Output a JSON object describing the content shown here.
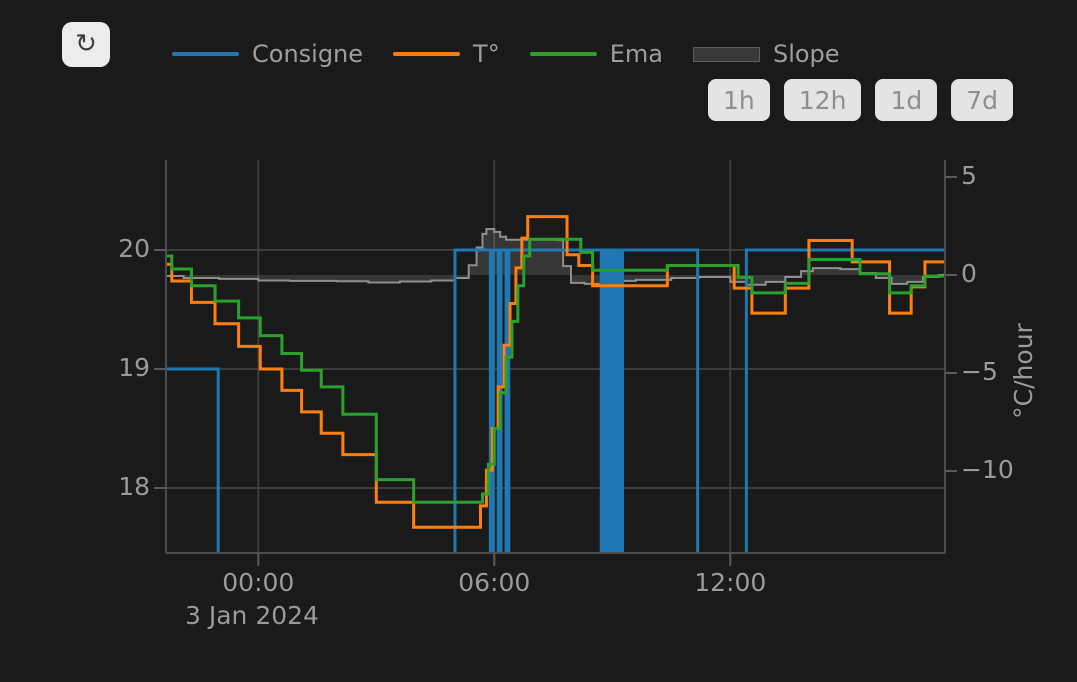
{
  "toolbar": {
    "refresh_icon": "↻"
  },
  "legend": {
    "items": [
      {
        "label": "Consigne",
        "color": "#1f77b4",
        "marker": "line"
      },
      {
        "label": "T°",
        "color": "#ff7f0e",
        "marker": "line"
      },
      {
        "label": "Ema",
        "color": "#2ca02c",
        "marker": "line"
      },
      {
        "label": "Slope",
        "color": "#383838",
        "marker": "box"
      }
    ]
  },
  "range_buttons": [
    {
      "label": "1h"
    },
    {
      "label": "12h"
    },
    {
      "label": "1d"
    },
    {
      "label": "7d"
    }
  ],
  "chart_data": {
    "type": "line",
    "x_axis": {
      "date_label": "3 Jan 2024",
      "tick_hours": [
        0,
        6,
        12
      ],
      "tick_labels": [
        "00:00",
        "06:00",
        "12:00"
      ],
      "range_hours": [
        -2.35,
        17.47
      ]
    },
    "left_axis": {
      "ticks": [
        20,
        19,
        18
      ],
      "tick_labels": [
        "20",
        "19",
        "18"
      ]
    },
    "right_axis": {
      "label": "°C/hour",
      "ticks": [
        5,
        0,
        -5,
        -10
      ],
      "tick_labels": [
        "5",
        "0",
        "−5",
        "−10"
      ]
    },
    "grid": true,
    "series": [
      {
        "name": "Consigne",
        "color": "#1f77b4",
        "axis": "left",
        "line_shape": "step",
        "null_means": "setpoint below visible range (line drawn to chart floor)",
        "points": [
          [
            -2.35,
            19
          ],
          [
            -1.02,
            null
          ],
          [
            5.0,
            20
          ],
          [
            5.9,
            null
          ],
          [
            5.97,
            20
          ],
          [
            6.1,
            null
          ],
          [
            6.17,
            20
          ],
          [
            6.3,
            null
          ],
          [
            6.37,
            20
          ],
          [
            8.72,
            null
          ],
          [
            8.78,
            20
          ],
          [
            8.84,
            null
          ],
          [
            8.9,
            20
          ],
          [
            8.96,
            null
          ],
          [
            9.02,
            20
          ],
          [
            9.08,
            null
          ],
          [
            9.14,
            20
          ],
          [
            9.2,
            null
          ],
          [
            9.26,
            20
          ],
          [
            11.17,
            null
          ],
          [
            12.41,
            20
          ]
        ]
      },
      {
        "name": "T°",
        "color": "#ff7f0e",
        "axis": "left",
        "line_shape": "step",
        "points": [
          [
            -2.35,
            19.88
          ],
          [
            -2.2,
            19.74
          ],
          [
            -1.7,
            19.56
          ],
          [
            -1.1,
            19.38
          ],
          [
            -0.5,
            19.19
          ],
          [
            0.05,
            19.0
          ],
          [
            0.6,
            18.82
          ],
          [
            1.1,
            18.64
          ],
          [
            1.6,
            18.46
          ],
          [
            2.15,
            18.28
          ],
          [
            3.0,
            17.88
          ],
          [
            3.95,
            17.67
          ],
          [
            5.65,
            17.85
          ],
          [
            5.8,
            18.15
          ],
          [
            5.95,
            18.5
          ],
          [
            6.1,
            18.85
          ],
          [
            6.25,
            19.2
          ],
          [
            6.4,
            19.55
          ],
          [
            6.55,
            19.85
          ],
          [
            6.7,
            20.1
          ],
          [
            6.85,
            20.28
          ],
          [
            7.85,
            19.96
          ],
          [
            8.15,
            19.87
          ],
          [
            8.5,
            19.7
          ],
          [
            10.4,
            19.87
          ],
          [
            12.1,
            19.68
          ],
          [
            12.55,
            19.47
          ],
          [
            13.4,
            19.68
          ],
          [
            14.0,
            20.08
          ],
          [
            15.1,
            19.9
          ],
          [
            16.05,
            19.47
          ],
          [
            16.6,
            19.69
          ],
          [
            16.95,
            19.9
          ]
        ]
      },
      {
        "name": "Ema",
        "color": "#2ca02c",
        "axis": "left",
        "line_shape": "step",
        "points": [
          [
            -2.35,
            19.95
          ],
          [
            -2.2,
            19.84
          ],
          [
            -1.7,
            19.7
          ],
          [
            -1.1,
            19.57
          ],
          [
            -0.5,
            19.43
          ],
          [
            0.05,
            19.28
          ],
          [
            0.6,
            19.13
          ],
          [
            1.1,
            18.99
          ],
          [
            1.6,
            18.85
          ],
          [
            2.15,
            18.62
          ],
          [
            3.0,
            18.07
          ],
          [
            3.95,
            17.88
          ],
          [
            5.7,
            17.95
          ],
          [
            5.85,
            18.2
          ],
          [
            6.0,
            18.5
          ],
          [
            6.15,
            18.8
          ],
          [
            6.3,
            19.1
          ],
          [
            6.45,
            19.4
          ],
          [
            6.6,
            19.7
          ],
          [
            6.75,
            19.95
          ],
          [
            6.9,
            20.09
          ],
          [
            8.2,
            19.98
          ],
          [
            8.5,
            19.83
          ],
          [
            10.4,
            19.87
          ],
          [
            12.2,
            19.77
          ],
          [
            12.55,
            19.64
          ],
          [
            13.4,
            19.72
          ],
          [
            14.0,
            19.92
          ],
          [
            15.3,
            19.8
          ],
          [
            16.05,
            19.64
          ],
          [
            16.6,
            19.7
          ],
          [
            16.95,
            19.78
          ]
        ]
      },
      {
        "name": "Slope",
        "color": "#8f8f8f",
        "fill_color": "rgba(130,130,130,0.28)",
        "axis": "right",
        "line_shape": "step",
        "fill": "tozero",
        "points": [
          [
            -2.35,
            -0.05
          ],
          [
            -1.9,
            -0.15
          ],
          [
            -1.0,
            -0.2
          ],
          [
            0.0,
            -0.28
          ],
          [
            0.8,
            -0.3
          ],
          [
            2.0,
            -0.32
          ],
          [
            2.8,
            -0.38
          ],
          [
            3.6,
            -0.33
          ],
          [
            4.4,
            -0.28
          ],
          [
            5.0,
            -0.15
          ],
          [
            5.35,
            0.5
          ],
          [
            5.55,
            1.4
          ],
          [
            5.7,
            2.1
          ],
          [
            5.8,
            2.35
          ],
          [
            6.0,
            2.2
          ],
          [
            6.15,
            1.95
          ],
          [
            6.3,
            1.8
          ],
          [
            7.6,
            1.78
          ],
          [
            7.75,
            0.45
          ],
          [
            7.95,
            -0.4
          ],
          [
            8.3,
            -0.45
          ],
          [
            8.8,
            -0.3
          ],
          [
            9.6,
            -0.25
          ],
          [
            10.5,
            -0.15
          ],
          [
            11.2,
            -0.1
          ],
          [
            12.0,
            -0.35
          ],
          [
            12.4,
            -0.5
          ],
          [
            12.9,
            -0.35
          ],
          [
            13.4,
            -0.1
          ],
          [
            13.8,
            0.2
          ],
          [
            14.1,
            0.35
          ],
          [
            14.8,
            0.3
          ],
          [
            15.3,
            0.1
          ],
          [
            15.7,
            -0.15
          ],
          [
            16.1,
            -0.45
          ],
          [
            16.5,
            -0.35
          ],
          [
            16.9,
            -0.1
          ],
          [
            17.3,
            0.0
          ],
          [
            17.45,
            0.05
          ]
        ]
      }
    ]
  }
}
